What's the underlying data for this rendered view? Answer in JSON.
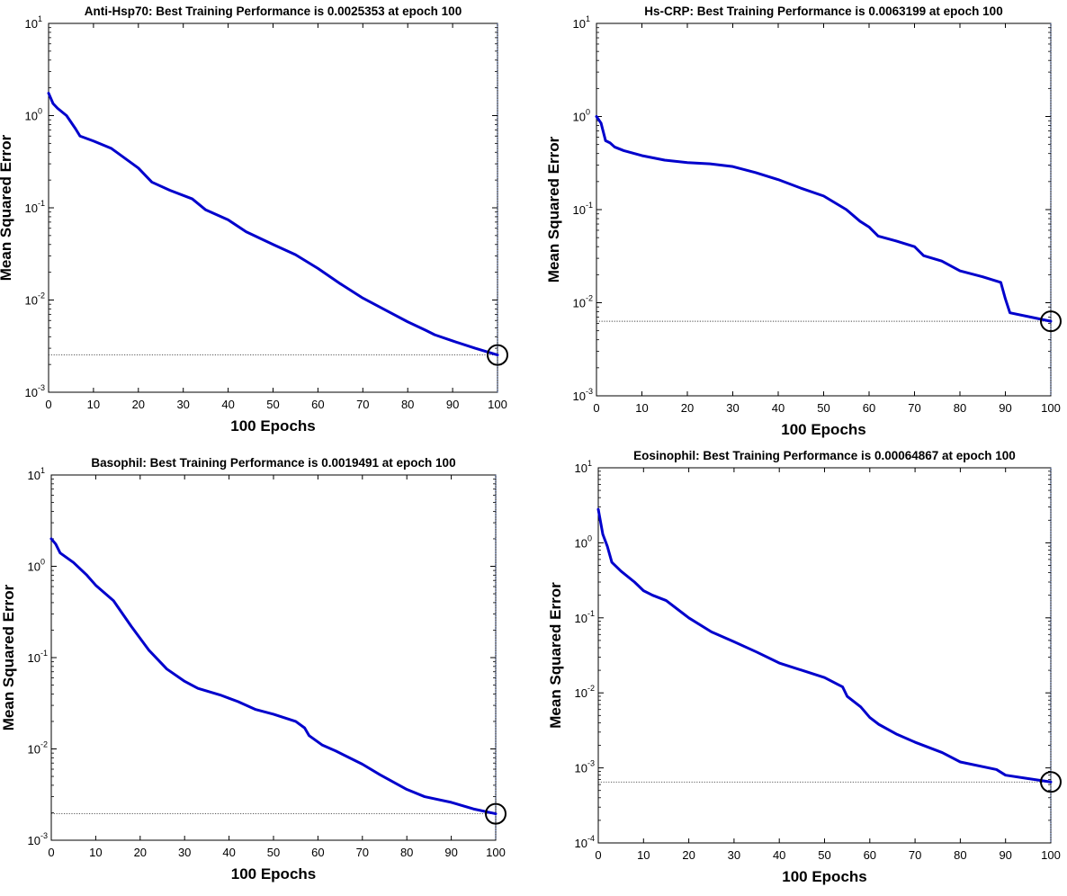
{
  "chart_data": [
    {
      "type": "line",
      "title": "Anti-Hsp70: Best Training Performance is 0.0025353 at epoch 100",
      "xlabel": "100 Epochs",
      "ylabel": "Mean Squared Error",
      "yscale": "log",
      "xlim": [
        0,
        100
      ],
      "ylim": [
        0.001,
        10
      ],
      "xticks": [
        "0",
        "10",
        "20",
        "30",
        "40",
        "50",
        "60",
        "70",
        "80",
        "90",
        "100"
      ],
      "yticks": [
        {
          "base": "10",
          "exp": "-3"
        },
        {
          "base": "10",
          "exp": "-2"
        },
        {
          "base": "10",
          "exp": "-1"
        },
        {
          "base": "10",
          "exp": "0"
        },
        {
          "base": "10",
          "exp": "1"
        }
      ],
      "best": {
        "epoch": 100,
        "value": 0.0025353
      },
      "line_color": "#0000cc",
      "x": [
        0,
        1,
        2,
        4,
        6,
        7,
        10,
        14,
        20,
        23,
        27,
        32,
        35,
        40,
        44,
        50,
        55,
        60,
        65,
        70,
        75,
        80,
        84,
        86,
        90,
        95,
        100
      ],
      "y": [
        1.75,
        1.35,
        1.2,
        1.0,
        0.72,
        0.6,
        0.53,
        0.44,
        0.27,
        0.19,
        0.155,
        0.125,
        0.095,
        0.074,
        0.055,
        0.04,
        0.031,
        0.022,
        0.015,
        0.0105,
        0.0078,
        0.0058,
        0.0047,
        0.0042,
        0.0036,
        0.003,
        0.0025353
      ]
    },
    {
      "type": "line",
      "title": "Hs-CRP: Best Training Performance is 0.0063199 at epoch 100",
      "xlabel": "100 Epochs",
      "ylabel": "Mean Squared Error",
      "yscale": "log",
      "xlim": [
        0,
        100
      ],
      "ylim": [
        0.001,
        10
      ],
      "xticks": [
        "0",
        "10",
        "20",
        "30",
        "40",
        "50",
        "60",
        "70",
        "80",
        "90",
        "100"
      ],
      "yticks": [
        {
          "base": "10",
          "exp": "-3"
        },
        {
          "base": "10",
          "exp": "-2"
        },
        {
          "base": "10",
          "exp": "-1"
        },
        {
          "base": "10",
          "exp": "0"
        },
        {
          "base": "10",
          "exp": "1"
        }
      ],
      "best": {
        "epoch": 100,
        "value": 0.0063199
      },
      "line_color": "#0000cc",
      "x": [
        0,
        1,
        2,
        3,
        4,
        6,
        10,
        15,
        20,
        25,
        30,
        35,
        40,
        45,
        50,
        55,
        58,
        60,
        62,
        66,
        70,
        72,
        76,
        80,
        85,
        89,
        90,
        91,
        95,
        100
      ],
      "y": [
        1.0,
        0.85,
        0.55,
        0.52,
        0.47,
        0.43,
        0.38,
        0.34,
        0.32,
        0.31,
        0.29,
        0.25,
        0.21,
        0.17,
        0.14,
        0.1,
        0.075,
        0.065,
        0.052,
        0.046,
        0.04,
        0.032,
        0.028,
        0.022,
        0.019,
        0.0165,
        0.011,
        0.0078,
        0.0071,
        0.0063199
      ]
    },
    {
      "type": "line",
      "title": "Basophil: Best Training Performance is 0.0019491 at epoch 100",
      "xlabel": "100 Epochs",
      "ylabel": "Mean Squared Error",
      "yscale": "log",
      "xlim": [
        0,
        100
      ],
      "ylim": [
        0.001,
        10
      ],
      "xticks": [
        "0",
        "10",
        "20",
        "30",
        "40",
        "50",
        "60",
        "70",
        "80",
        "90",
        "100"
      ],
      "yticks": [
        {
          "base": "10",
          "exp": "-3"
        },
        {
          "base": "10",
          "exp": "-2"
        },
        {
          "base": "10",
          "exp": "-1"
        },
        {
          "base": "10",
          "exp": "0"
        },
        {
          "base": "10",
          "exp": "1"
        }
      ],
      "best": {
        "epoch": 100,
        "value": 0.0019491
      },
      "line_color": "#0000cc",
      "x": [
        0,
        1,
        2,
        5,
        8,
        10,
        14,
        18,
        22,
        26,
        30,
        33,
        38,
        42,
        46,
        50,
        55,
        57,
        58,
        61,
        64,
        70,
        74,
        80,
        84,
        90,
        95,
        100
      ],
      "y": [
        2.0,
        1.75,
        1.4,
        1.1,
        0.8,
        0.62,
        0.42,
        0.22,
        0.12,
        0.075,
        0.055,
        0.046,
        0.039,
        0.033,
        0.027,
        0.024,
        0.02,
        0.017,
        0.014,
        0.011,
        0.0095,
        0.0068,
        0.0052,
        0.0036,
        0.003,
        0.0026,
        0.0022,
        0.0019491
      ]
    },
    {
      "type": "line",
      "title": "Eosinophil: Best Training Performance is 0.00064867 at epoch 100",
      "xlabel": "100 Epochs",
      "ylabel": "Mean Squared Error",
      "yscale": "log",
      "xlim": [
        0,
        100
      ],
      "ylim": [
        0.0001,
        10
      ],
      "xticks": [
        "0",
        "10",
        "20",
        "30",
        "40",
        "50",
        "60",
        "70",
        "80",
        "90",
        "100"
      ],
      "yticks": [
        {
          "base": "10",
          "exp": "-4"
        },
        {
          "base": "10",
          "exp": "-3"
        },
        {
          "base": "10",
          "exp": "-2"
        },
        {
          "base": "10",
          "exp": "-1"
        },
        {
          "base": "10",
          "exp": "0"
        },
        {
          "base": "10",
          "exp": "1"
        }
      ],
      "best": {
        "epoch": 100,
        "value": 0.00064867
      },
      "line_color": "#0000cc",
      "x": [
        0,
        1,
        2,
        3,
        5,
        8,
        10,
        12,
        15,
        20,
        25,
        30,
        35,
        40,
        45,
        50,
        54,
        55,
        58,
        60,
        62,
        66,
        70,
        76,
        80,
        88,
        90,
        95,
        100
      ],
      "y": [
        2.8,
        1.3,
        0.9,
        0.55,
        0.42,
        0.3,
        0.23,
        0.2,
        0.17,
        0.1,
        0.065,
        0.048,
        0.035,
        0.025,
        0.02,
        0.016,
        0.012,
        0.009,
        0.0065,
        0.0047,
        0.0038,
        0.0028,
        0.0022,
        0.0016,
        0.0012,
        0.00095,
        0.0008,
        0.00072,
        0.00064867
      ]
    }
  ]
}
